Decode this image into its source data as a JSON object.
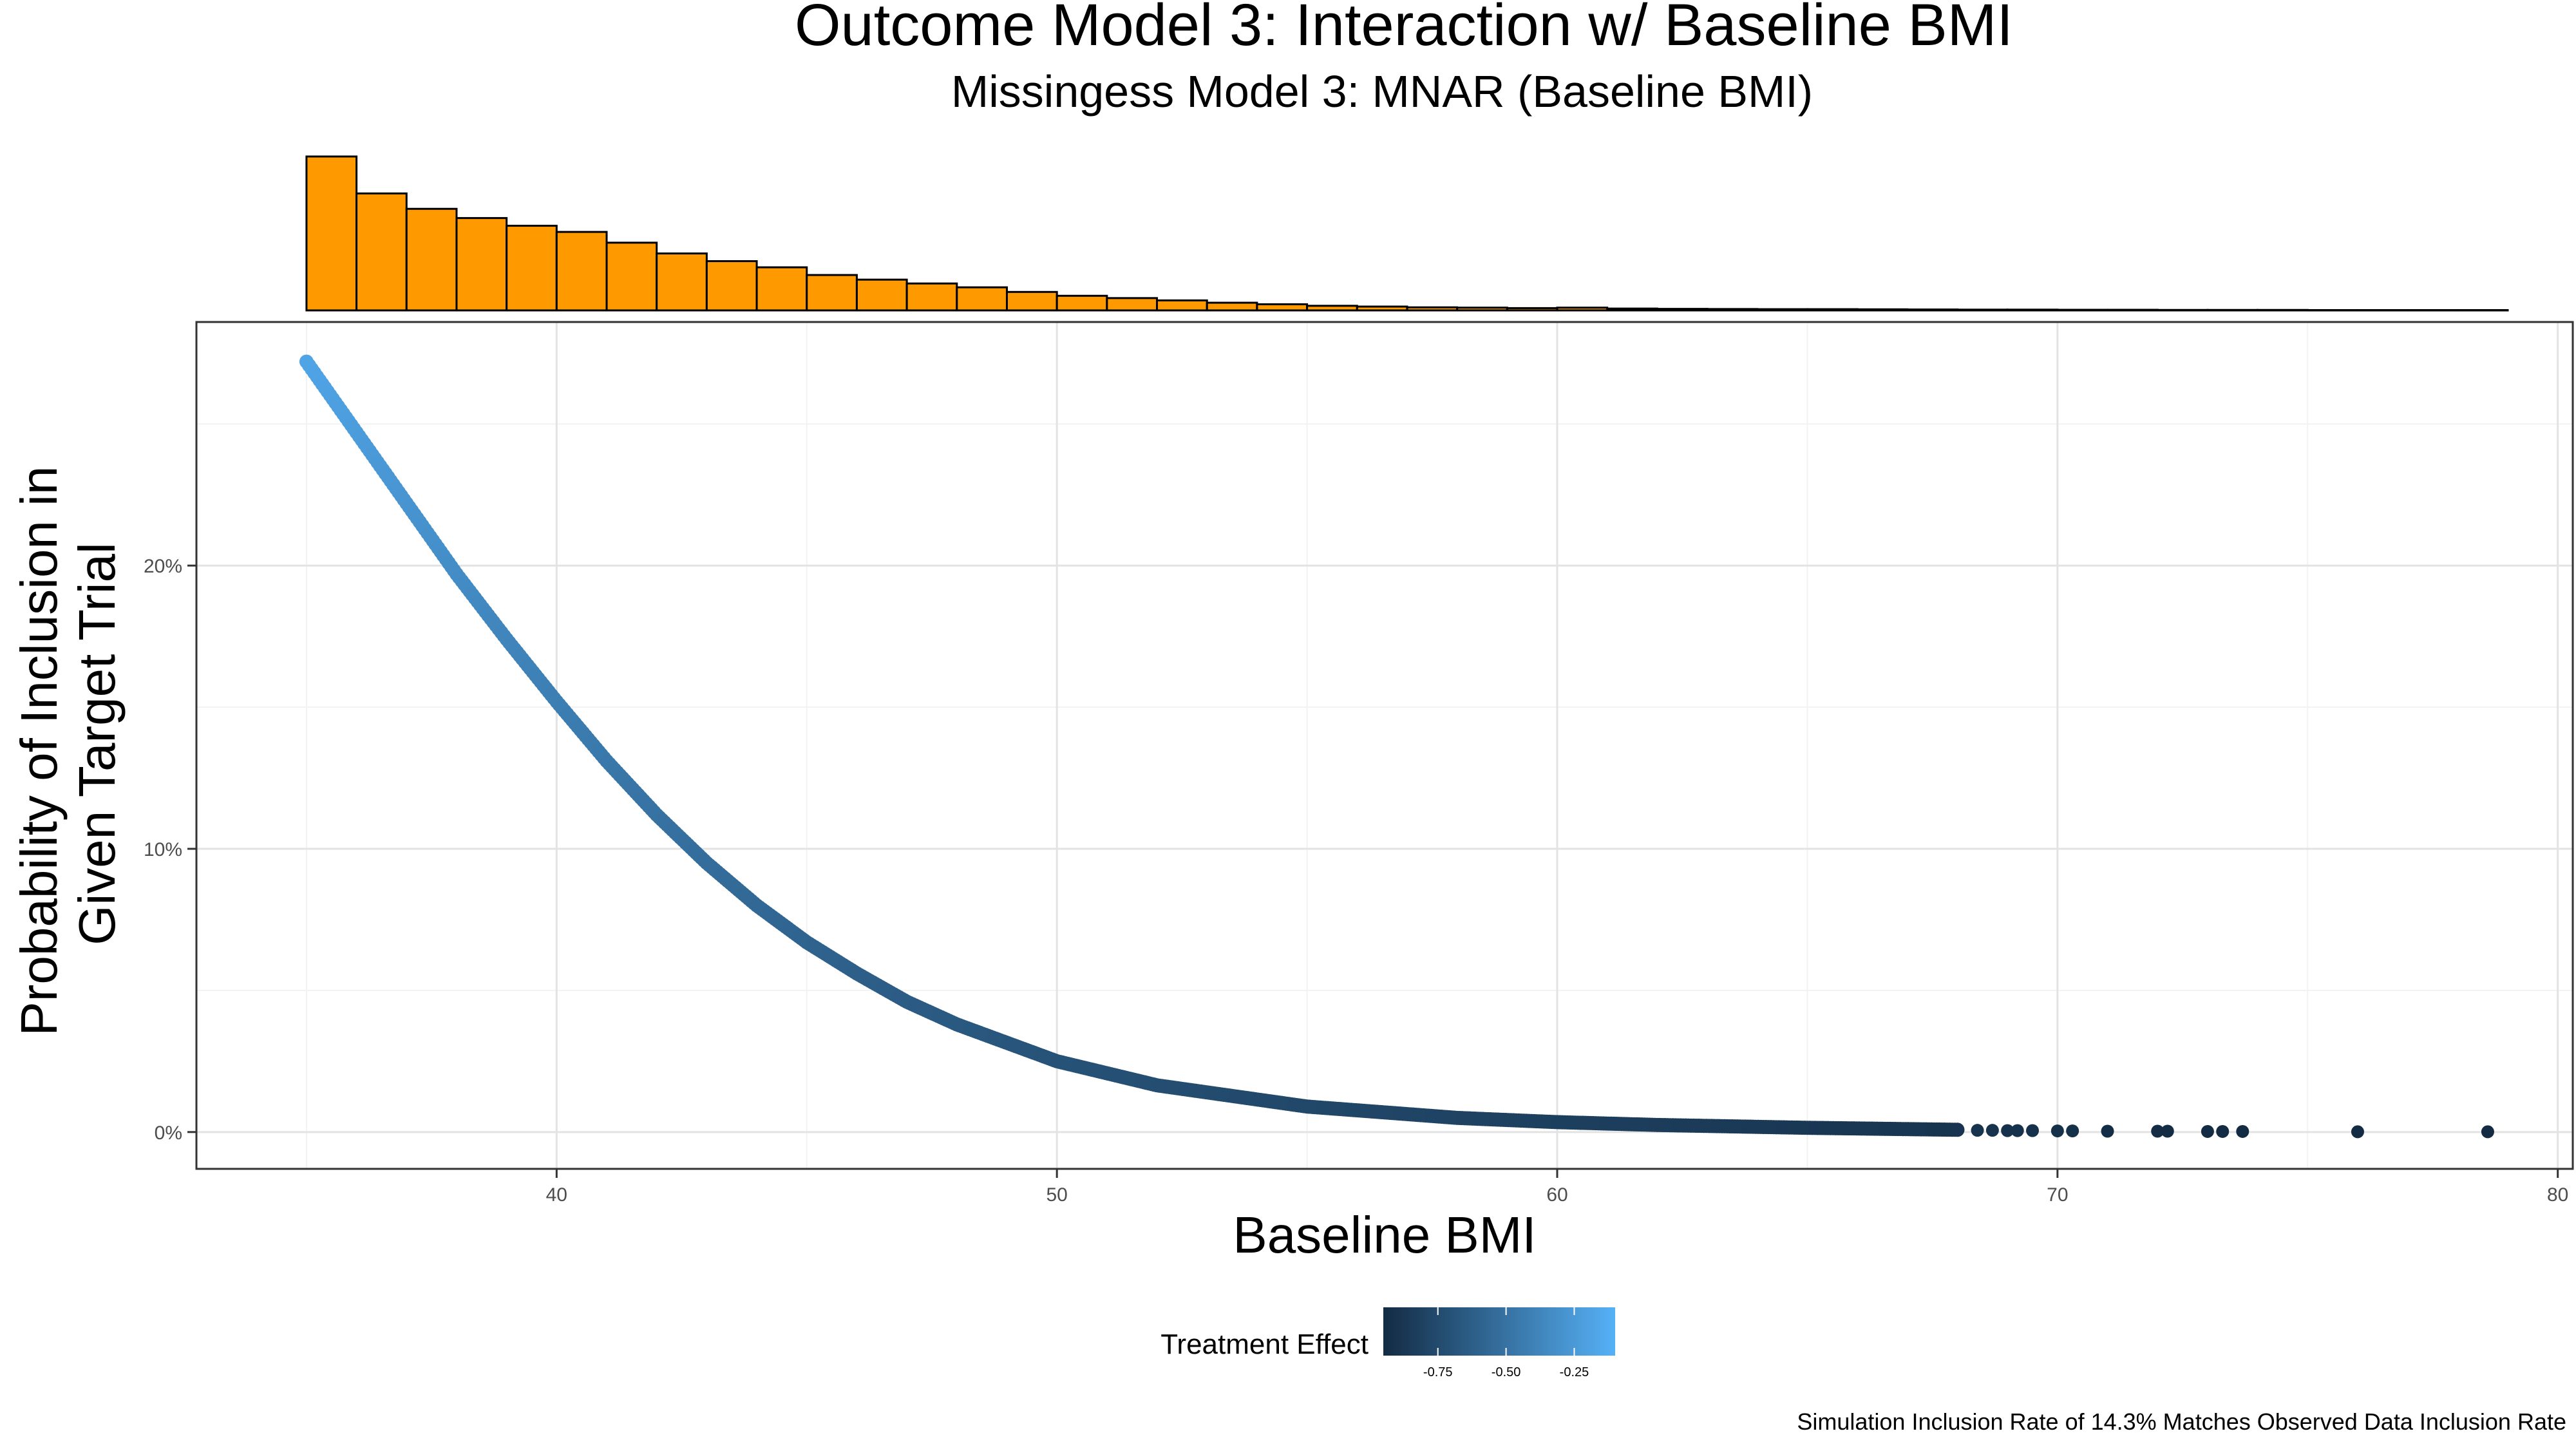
{
  "chart_data": {
    "type": "scatter",
    "title": "Outcome Model 3: Interaction w/ Baseline BMI",
    "subtitle": "Missingess Model 3: MNAR (Baseline BMI)",
    "xlabel": "Baseline BMI",
    "ylabel_lines": [
      "Probability of Inclusion in",
      "Given Target Trial"
    ],
    "caption": "Simulation Inclusion Rate of 14.3% Matches Observed Data Inclusion Rate",
    "xlim": [
      32.8,
      80.3
    ],
    "ylim": [
      -0.013,
      0.286
    ],
    "x_ticks": [
      40,
      50,
      60,
      70,
      80
    ],
    "y_ticks": [
      0,
      0.1,
      0.2
    ],
    "y_tick_labels": [
      "0%",
      "10%",
      "20%"
    ],
    "grid": true,
    "point_color_low": "#132B43",
    "point_color_high": "#56B1F7",
    "curve": {
      "x": [
        35.0,
        36.0,
        37.0,
        38.0,
        39.0,
        40.0,
        41.0,
        42.0,
        43.0,
        44.0,
        45.0,
        46.0,
        47.0,
        48.0,
        50.0,
        52.0,
        55.0,
        58.0,
        60.0,
        62.0,
        65.0,
        68.0
      ],
      "y": [
        0.272,
        0.247,
        0.222,
        0.197,
        0.174,
        0.152,
        0.131,
        0.112,
        0.095,
        0.08,
        0.067,
        0.056,
        0.046,
        0.038,
        0.025,
        0.0165,
        0.009,
        0.005,
        0.0035,
        0.0025,
        0.0015,
        0.0008
      ],
      "effect": [
        -0.18,
        -0.23,
        -0.28,
        -0.33,
        -0.38,
        -0.42,
        -0.46,
        -0.5,
        -0.53,
        -0.56,
        -0.59,
        -0.62,
        -0.64,
        -0.66,
        -0.7,
        -0.73,
        -0.77,
        -0.8,
        -0.82,
        -0.84,
        -0.87,
        -0.89
      ]
    },
    "tail_points": {
      "x": [
        68.4,
        68.7,
        69.0,
        69.2,
        69.5,
        70.0,
        70.3,
        71.0,
        72.0,
        72.2,
        73.0,
        73.3,
        73.7,
        76.0,
        78.6
      ],
      "y": [
        0.0006,
        0.0006,
        0.0005,
        0.0005,
        0.0005,
        0.0004,
        0.0004,
        0.0003,
        0.0003,
        0.0003,
        0.0002,
        0.0002,
        0.0002,
        0.0001,
        0.0001
      ],
      "effect": [
        -0.9,
        -0.9,
        -0.91,
        -0.91,
        -0.91,
        -0.92,
        -0.92,
        -0.93,
        -0.94,
        -0.94,
        -0.95,
        -0.95,
        -0.95,
        -0.97,
        -0.99
      ]
    },
    "histogram": {
      "fill": "#FF9900",
      "bin_start": 35.0,
      "bin_width": 1.0,
      "counts": [
        1000,
        760,
        660,
        600,
        550,
        510,
        440,
        370,
        320,
        280,
        230,
        200,
        175,
        150,
        120,
        95,
        80,
        65,
        50,
        40,
        30,
        25,
        20,
        18,
        15,
        18,
        12,
        10,
        9,
        8,
        8,
        7,
        6,
        5,
        5,
        4,
        4,
        3,
        3,
        3,
        2,
        2,
        2,
        2
      ]
    },
    "legend": {
      "title": "Treatment Effect",
      "range": [
        -0.95,
        -0.1
      ],
      "ticks": [
        -0.75,
        -0.5,
        -0.25
      ],
      "tick_labels": [
        "-0.75",
        "-0.50",
        "-0.25"
      ]
    }
  }
}
